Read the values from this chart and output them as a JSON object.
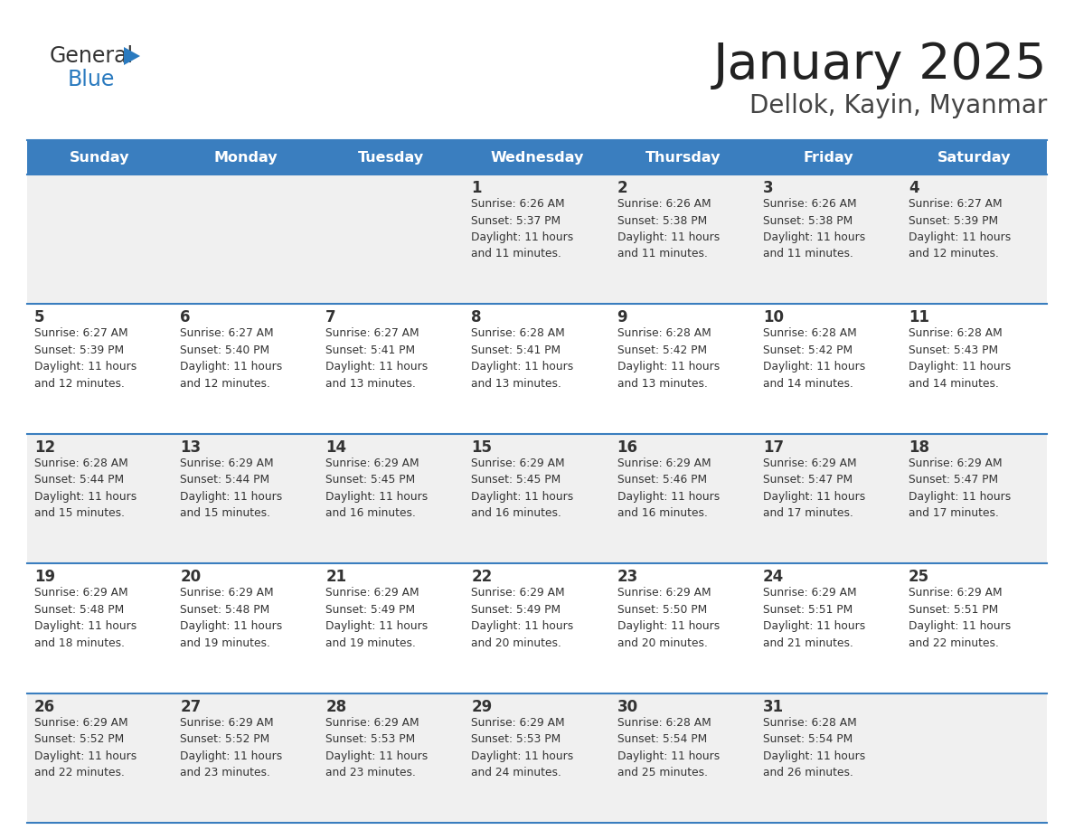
{
  "title": "January 2025",
  "subtitle": "Dellok, Kayin, Myanmar",
  "days_of_week": [
    "Sunday",
    "Monday",
    "Tuesday",
    "Wednesday",
    "Thursday",
    "Friday",
    "Saturday"
  ],
  "header_bg": "#3a7ebf",
  "header_text": "#ffffff",
  "cell_bg_odd": "#f0f0f0",
  "cell_bg_even": "#ffffff",
  "cell_text": "#333333",
  "separator_color": "#3a7ebf",
  "calendar_data": [
    [
      {
        "day": null,
        "sunrise": null,
        "sunset": null,
        "daylight": null
      },
      {
        "day": null,
        "sunrise": null,
        "sunset": null,
        "daylight": null
      },
      {
        "day": null,
        "sunrise": null,
        "sunset": null,
        "daylight": null
      },
      {
        "day": 1,
        "sunrise": "6:26 AM",
        "sunset": "5:37 PM",
        "daylight": "11 hours and 11 minutes."
      },
      {
        "day": 2,
        "sunrise": "6:26 AM",
        "sunset": "5:38 PM",
        "daylight": "11 hours and 11 minutes."
      },
      {
        "day": 3,
        "sunrise": "6:26 AM",
        "sunset": "5:38 PM",
        "daylight": "11 hours and 11 minutes."
      },
      {
        "day": 4,
        "sunrise": "6:27 AM",
        "sunset": "5:39 PM",
        "daylight": "11 hours and 12 minutes."
      }
    ],
    [
      {
        "day": 5,
        "sunrise": "6:27 AM",
        "sunset": "5:39 PM",
        "daylight": "11 hours and 12 minutes."
      },
      {
        "day": 6,
        "sunrise": "6:27 AM",
        "sunset": "5:40 PM",
        "daylight": "11 hours and 12 minutes."
      },
      {
        "day": 7,
        "sunrise": "6:27 AM",
        "sunset": "5:41 PM",
        "daylight": "11 hours and 13 minutes."
      },
      {
        "day": 8,
        "sunrise": "6:28 AM",
        "sunset": "5:41 PM",
        "daylight": "11 hours and 13 minutes."
      },
      {
        "day": 9,
        "sunrise": "6:28 AM",
        "sunset": "5:42 PM",
        "daylight": "11 hours and 13 minutes."
      },
      {
        "day": 10,
        "sunrise": "6:28 AM",
        "sunset": "5:42 PM",
        "daylight": "11 hours and 14 minutes."
      },
      {
        "day": 11,
        "sunrise": "6:28 AM",
        "sunset": "5:43 PM",
        "daylight": "11 hours and 14 minutes."
      }
    ],
    [
      {
        "day": 12,
        "sunrise": "6:28 AM",
        "sunset": "5:44 PM",
        "daylight": "11 hours and 15 minutes."
      },
      {
        "day": 13,
        "sunrise": "6:29 AM",
        "sunset": "5:44 PM",
        "daylight": "11 hours and 15 minutes."
      },
      {
        "day": 14,
        "sunrise": "6:29 AM",
        "sunset": "5:45 PM",
        "daylight": "11 hours and 16 minutes."
      },
      {
        "day": 15,
        "sunrise": "6:29 AM",
        "sunset": "5:45 PM",
        "daylight": "11 hours and 16 minutes."
      },
      {
        "day": 16,
        "sunrise": "6:29 AM",
        "sunset": "5:46 PM",
        "daylight": "11 hours and 16 minutes."
      },
      {
        "day": 17,
        "sunrise": "6:29 AM",
        "sunset": "5:47 PM",
        "daylight": "11 hours and 17 minutes."
      },
      {
        "day": 18,
        "sunrise": "6:29 AM",
        "sunset": "5:47 PM",
        "daylight": "11 hours and 17 minutes."
      }
    ],
    [
      {
        "day": 19,
        "sunrise": "6:29 AM",
        "sunset": "5:48 PM",
        "daylight": "11 hours and 18 minutes."
      },
      {
        "day": 20,
        "sunrise": "6:29 AM",
        "sunset": "5:48 PM",
        "daylight": "11 hours and 19 minutes."
      },
      {
        "day": 21,
        "sunrise": "6:29 AM",
        "sunset": "5:49 PM",
        "daylight": "11 hours and 19 minutes."
      },
      {
        "day": 22,
        "sunrise": "6:29 AM",
        "sunset": "5:49 PM",
        "daylight": "11 hours and 20 minutes."
      },
      {
        "day": 23,
        "sunrise": "6:29 AM",
        "sunset": "5:50 PM",
        "daylight": "11 hours and 20 minutes."
      },
      {
        "day": 24,
        "sunrise": "6:29 AM",
        "sunset": "5:51 PM",
        "daylight": "11 hours and 21 minutes."
      },
      {
        "day": 25,
        "sunrise": "6:29 AM",
        "sunset": "5:51 PM",
        "daylight": "11 hours and 22 minutes."
      }
    ],
    [
      {
        "day": 26,
        "sunrise": "6:29 AM",
        "sunset": "5:52 PM",
        "daylight": "11 hours and 22 minutes."
      },
      {
        "day": 27,
        "sunrise": "6:29 AM",
        "sunset": "5:52 PM",
        "daylight": "11 hours and 23 minutes."
      },
      {
        "day": 28,
        "sunrise": "6:29 AM",
        "sunset": "5:53 PM",
        "daylight": "11 hours and 23 minutes."
      },
      {
        "day": 29,
        "sunrise": "6:29 AM",
        "sunset": "5:53 PM",
        "daylight": "11 hours and 24 minutes."
      },
      {
        "day": 30,
        "sunrise": "6:28 AM",
        "sunset": "5:54 PM",
        "daylight": "11 hours and 25 minutes."
      },
      {
        "day": 31,
        "sunrise": "6:28 AM",
        "sunset": "5:54 PM",
        "daylight": "11 hours and 26 minutes."
      },
      {
        "day": null,
        "sunrise": null,
        "sunset": null,
        "daylight": null
      }
    ]
  ]
}
